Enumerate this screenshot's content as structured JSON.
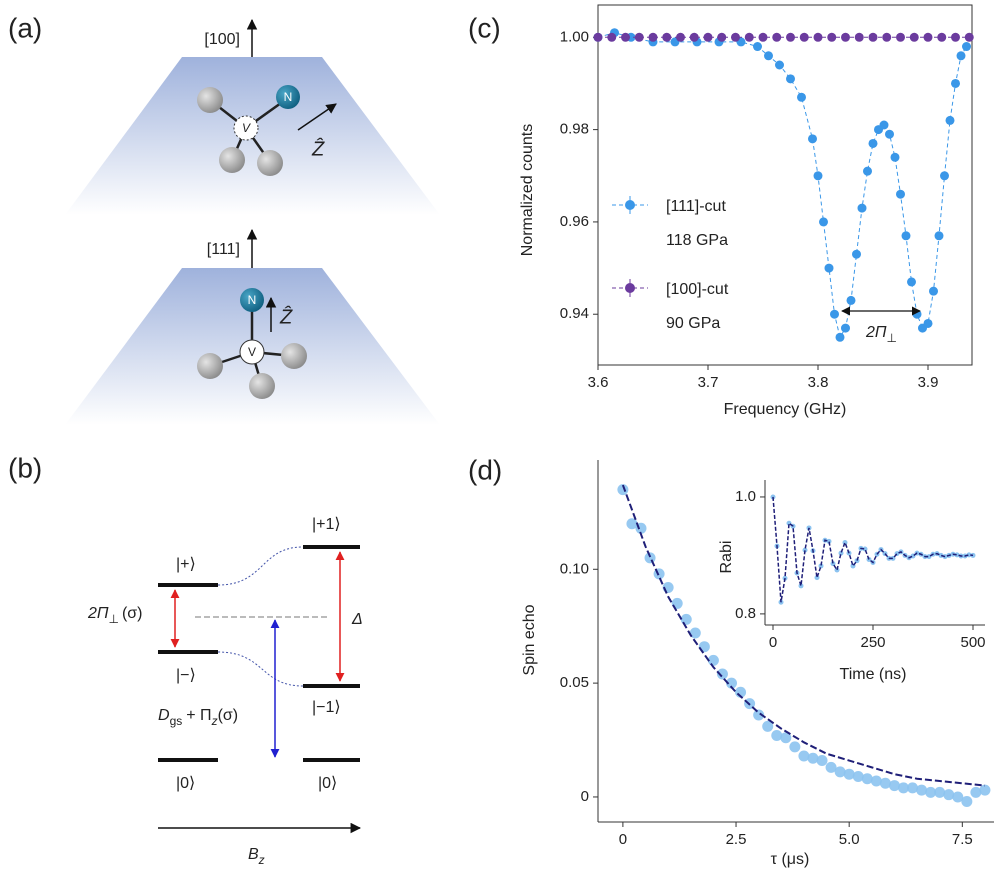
{
  "panel_labels": [
    "(a)",
    "(b)",
    "(c)",
    "(d)"
  ],
  "diagram_a": {
    "top_axis": "[100]",
    "bottom_axis": "[111]",
    "n_top": "N",
    "v_top": "V",
    "z_top": "Ẑ",
    "n_bottom": "N",
    "v_bottom": "V",
    "z_bottom": "Ẑ"
  },
  "diagram_b": {
    "levels": [
      "|+⟩",
      "|−⟩",
      "|0⟩",
      "|+1⟩",
      "|−1⟩",
      "|0⟩"
    ],
    "splitting": [
      "2Π",
      "⊥",
      "(σ)"
    ],
    "delta": "Δ",
    "zero_field": [
      "D",
      "gs",
      "+ Π",
      "z",
      "(σ)"
    ],
    "field": [
      "B",
      "z"
    ]
  },
  "chart_data": [
    {
      "type": "line",
      "xlabel": "Frequency (GHz)",
      "ylabel": "Normalized counts",
      "xlim": [
        3.6,
        3.94
      ],
      "ylim": [
        0.929,
        1.007
      ],
      "xticks": [
        3.6,
        3.7,
        3.8,
        3.9
      ],
      "yticks": [
        0.94,
        0.96,
        0.98,
        {
          "value": 1,
          "label": "1.00"
        }
      ],
      "annotation": [
        "2Π",
        "⊥"
      ],
      "series": [
        {
          "name": "[111]-cut",
          "label": "118 GPa",
          "color": "#3a97e8",
          "x": [
            3.6,
            3.615,
            3.63,
            3.65,
            3.67,
            3.69,
            3.71,
            3.73,
            3.745,
            3.755,
            3.765,
            3.775,
            3.785,
            3.795,
            3.8,
            3.805,
            3.81,
            3.815,
            3.82,
            3.825,
            3.83,
            3.835,
            3.84,
            3.845,
            3.85,
            3.855,
            3.86,
            3.865,
            3.87,
            3.875,
            3.88,
            3.885,
            3.89,
            3.895,
            3.9,
            3.905,
            3.91,
            3.915,
            3.92,
            3.925,
            3.93,
            3.935
          ],
          "values": [
            1.0,
            1.001,
            1.0,
            0.999,
            0.999,
            0.999,
            0.999,
            0.999,
            0.998,
            0.996,
            0.994,
            0.991,
            0.987,
            0.978,
            0.97,
            0.96,
            0.95,
            0.94,
            0.935,
            0.937,
            0.943,
            0.953,
            0.963,
            0.971,
            0.977,
            0.98,
            0.981,
            0.979,
            0.974,
            0.966,
            0.957,
            0.947,
            0.94,
            0.937,
            0.938,
            0.945,
            0.957,
            0.97,
            0.982,
            0.99,
            0.996,
            0.998
          ]
        },
        {
          "name": "[100]-cut",
          "label": "90 GPa",
          "color": "#6b3b9e",
          "x": [
            3.6,
            3.6125,
            3.625,
            3.6375,
            3.65,
            3.6625,
            3.675,
            3.6875,
            3.7,
            3.7125,
            3.725,
            3.7375,
            3.75,
            3.7625,
            3.775,
            3.7875,
            3.8,
            3.8125,
            3.825,
            3.8375,
            3.85,
            3.8625,
            3.875,
            3.8875,
            3.9,
            3.9125,
            3.925,
            3.9375
          ],
          "values": [
            1,
            1,
            1,
            1,
            1,
            1,
            1,
            1,
            1,
            1,
            1,
            1,
            1,
            1,
            1,
            1,
            1,
            1,
            1,
            1,
            1,
            1,
            1,
            1,
            1,
            1,
            1,
            1
          ]
        }
      ]
    },
    {
      "type": "scatter",
      "xlabel": "τ (μs)",
      "ylabel": "Spin echo",
      "xlim": [
        -0.55,
        8.2
      ],
      "ylim": [
        -0.011,
        0.148
      ],
      "xticks": [
        0,
        2.5,
        {
          "value": 5,
          "label": "5.0"
        },
        7.5
      ],
      "yticks": [
        0,
        0.05,
        {
          "value": 0.1,
          "label": "0.10"
        }
      ],
      "series": [
        {
          "color": "#8cc3f0",
          "x": [
            0,
            0.2,
            0.4,
            0.6,
            0.8,
            1.0,
            1.2,
            1.4,
            1.6,
            1.8,
            2.0,
            2.2,
            2.4,
            2.6,
            2.8,
            3.0,
            3.2,
            3.4,
            3.6,
            3.8,
            4.0,
            4.2,
            4.4,
            4.6,
            4.8,
            5.0,
            5.2,
            5.4,
            5.6,
            5.8,
            6.0,
            6.2,
            6.4,
            6.6,
            6.8,
            7.0,
            7.2,
            7.4,
            7.6,
            7.8,
            8.0
          ],
          "values": [
            0.135,
            0.12,
            0.118,
            0.105,
            0.098,
            0.092,
            0.085,
            0.078,
            0.072,
            0.066,
            0.06,
            0.054,
            0.05,
            0.046,
            0.041,
            0.036,
            0.031,
            0.027,
            0.026,
            0.022,
            0.018,
            0.017,
            0.016,
            0.013,
            0.011,
            0.01,
            0.009,
            0.008,
            0.007,
            0.006,
            0.005,
            0.004,
            0.004,
            0.003,
            0.002,
            0.002,
            0.001,
            0.0,
            -0.002,
            0.002,
            0.003
          ]
        }
      ],
      "fit": {
        "color": "#1f1f78",
        "x": [
          0,
          0.5,
          1,
          1.5,
          2,
          2.5,
          3,
          3.5,
          4,
          4.5,
          5,
          5.5,
          6,
          6.5,
          7,
          7.5,
          8
        ],
        "values": [
          0.137,
          0.11,
          0.088,
          0.071,
          0.057,
          0.046,
          0.037,
          0.03,
          0.024,
          0.019,
          0.016,
          0.013,
          0.01,
          0.008,
          0.007,
          0.006,
          0.005
        ]
      }
    },
    {
      "type": "line",
      "xlabel": "Time (ns)",
      "ylabel": "Rabi",
      "xlim": [
        -20,
        530
      ],
      "ylim": [
        0.781,
        1.029
      ],
      "xticks": [
        0,
        250,
        500
      ],
      "yticks": [
        0.8,
        {
          "value": 1,
          "label": "1.0"
        }
      ],
      "series": [
        {
          "color": "#1f1f78",
          "x": [
            0,
            10,
            20,
            30,
            40,
            50,
            60,
            70,
            80,
            90,
            100,
            110,
            120,
            130,
            140,
            150,
            160,
            170,
            180,
            190,
            200,
            210,
            220,
            230,
            240,
            250,
            260,
            270,
            280,
            290,
            300,
            310,
            320,
            330,
            340,
            350,
            360,
            370,
            380,
            390,
            400,
            410,
            420,
            430,
            440,
            450,
            460,
            470,
            480,
            490,
            500
          ],
          "values": [
            1.0,
            0.916,
            0.82,
            0.861,
            0.955,
            0.95,
            0.87,
            0.848,
            0.909,
            0.947,
            0.908,
            0.862,
            0.882,
            0.926,
            0.924,
            0.886,
            0.875,
            0.904,
            0.922,
            0.904,
            0.882,
            0.891,
            0.912,
            0.911,
            0.893,
            0.888,
            0.902,
            0.91,
            0.903,
            0.895,
            0.895,
            0.903,
            0.906,
            0.9,
            0.896,
            0.899,
            0.904,
            0.902,
            0.898,
            0.898,
            0.902,
            0.903,
            0.9,
            0.898,
            0.9,
            0.902,
            0.901,
            0.899,
            0.899,
            0.901,
            0.9
          ]
        }
      ]
    }
  ]
}
